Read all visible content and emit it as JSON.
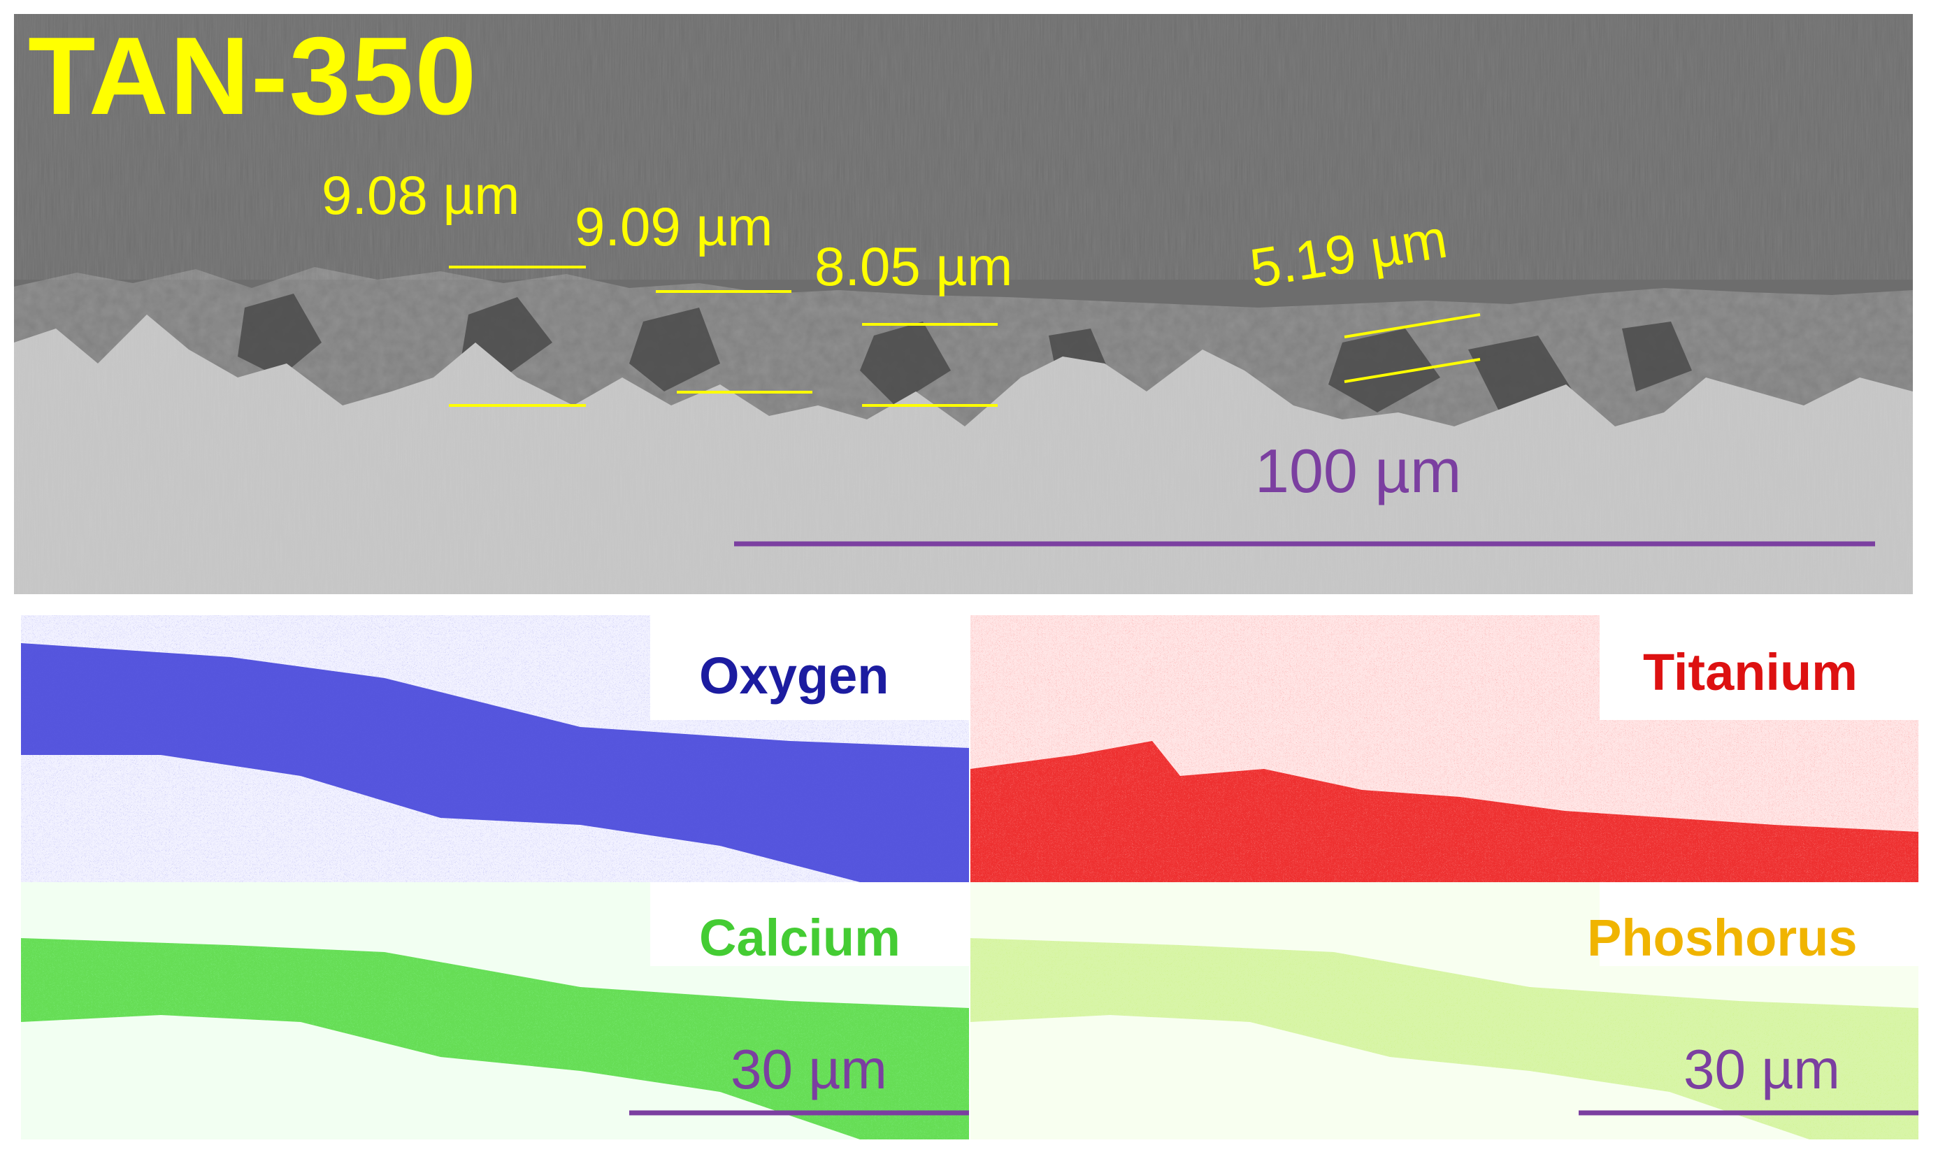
{
  "sem": {
    "title": "TAN-350",
    "measurements": [
      "9.08 µm",
      "9.09 µm",
      "8.05 µm",
      "5.19 µm"
    ],
    "scale_bar_label": "100  µm",
    "colors": {
      "text": "#ffff00",
      "scale": "#7b3fa0"
    }
  },
  "eds_maps": [
    {
      "element": "Oxygen",
      "color": "#1c1ca0"
    },
    {
      "element": "Titanium",
      "color": "#dd1111"
    },
    {
      "element": "Calcium",
      "color": "#44cc33"
    },
    {
      "element": "Phoshorus",
      "color": "#f0b400"
    }
  ],
  "eds_scale_bars": [
    "30  µm",
    "30  µm"
  ]
}
